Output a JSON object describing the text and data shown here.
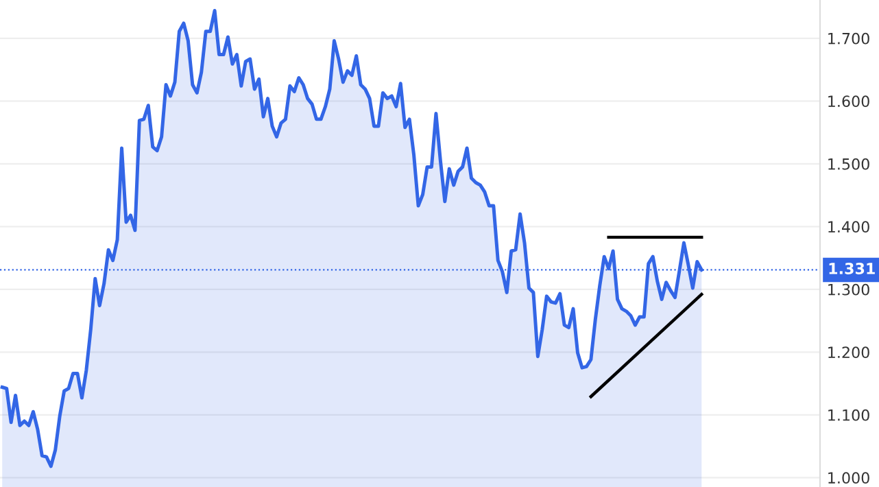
{
  "chart_data": {
    "type": "area",
    "categories": [
      null,
      null,
      null,
      null,
      null,
      null,
      null,
      null,
      null,
      null,
      null,
      null,
      null,
      null,
      null,
      null,
      null,
      null,
      null,
      null,
      null,
      null,
      null,
      null,
      null,
      null,
      null,
      null,
      null,
      null,
      null,
      null,
      null,
      null,
      null,
      null,
      null,
      null,
      null,
      null,
      null,
      null,
      null,
      null,
      null,
      null,
      null,
      null,
      null,
      null,
      null,
      null,
      null,
      null,
      null,
      null,
      null,
      null,
      null,
      null,
      null,
      null,
      null,
      null,
      null,
      null,
      null,
      null,
      null,
      null,
      null,
      null,
      null,
      null,
      null,
      null,
      null,
      null,
      null,
      null,
      null,
      null,
      null,
      null,
      null,
      null,
      null,
      null,
      null,
      null,
      null,
      null,
      null,
      null,
      null,
      null,
      null,
      null,
      null,
      null,
      null,
      null,
      null,
      null,
      null,
      null,
      null,
      null,
      null,
      null,
      null,
      null,
      null,
      null,
      null,
      null,
      null,
      null,
      null,
      null,
      null,
      null,
      null,
      null,
      null,
      null,
      null,
      null,
      null,
      null,
      null,
      null,
      null,
      null,
      null,
      null,
      null,
      null,
      null,
      null,
      null,
      null,
      null,
      null,
      null,
      null,
      null,
      null,
      null,
      null,
      null,
      null,
      null,
      null,
      null,
      null,
      null,
      null,
      null
    ],
    "series": [
      {
        "color": "#3366e6",
        "values": [
          1.144,
          1.142,
          1.088,
          1.131,
          1.083,
          1.09,
          1.083,
          1.105,
          1.077,
          1.035,
          1.033,
          1.018,
          1.044,
          1.098,
          1.138,
          1.142,
          1.166,
          1.166,
          1.127,
          1.171,
          1.236,
          1.317,
          1.274,
          1.309,
          1.363,
          1.346,
          1.379,
          1.525,
          1.407,
          1.418,
          1.394,
          1.569,
          1.571,
          1.593,
          1.527,
          1.521,
          1.543,
          1.626,
          1.608,
          1.63,
          1.711,
          1.724,
          1.696,
          1.626,
          1.613,
          1.646,
          1.711,
          1.711,
          1.744,
          1.674,
          1.674,
          1.702,
          1.659,
          1.674,
          1.624,
          1.663,
          1.667,
          1.619,
          1.635,
          1.575,
          1.604,
          1.56,
          1.543,
          1.565,
          1.571,
          1.624,
          1.615,
          1.637,
          1.626,
          1.604,
          1.595,
          1.571,
          1.571,
          1.591,
          1.619,
          1.696,
          1.667,
          1.63,
          1.648,
          1.641,
          1.672,
          1.626,
          1.619,
          1.604,
          1.56,
          1.56,
          1.613,
          1.604,
          1.608,
          1.591,
          1.628,
          1.558,
          1.571,
          1.514,
          1.433,
          1.451,
          1.495,
          1.495,
          1.58,
          1.505,
          1.44,
          1.492,
          1.466,
          1.488,
          1.495,
          1.525,
          1.477,
          1.47,
          1.466,
          1.455,
          1.433,
          1.433,
          1.346,
          1.328,
          1.295,
          1.361,
          1.363,
          1.42,
          1.374,
          1.302,
          1.295,
          1.193,
          1.236,
          1.289,
          1.28,
          1.278,
          1.293,
          1.243,
          1.239,
          1.269,
          1.199,
          1.175,
          1.177,
          1.188,
          1.252,
          1.306,
          1.352,
          1.333,
          1.361,
          1.284,
          1.269,
          1.265,
          1.258,
          1.243,
          1.256,
          1.256,
          1.341,
          1.352,
          1.313,
          1.284,
          1.311,
          1.298,
          1.287,
          1.33,
          1.374,
          1.339,
          1.302,
          1.344,
          1.331
        ]
      },
      {
        "type": "line",
        "color": "#000000",
        "values": [
          null,
          null,
          null,
          null,
          null,
          null,
          null,
          null,
          null,
          null,
          null,
          null,
          null,
          null,
          null,
          null,
          null,
          null,
          null,
          null,
          null,
          null,
          null,
          null,
          null,
          null,
          null,
          null,
          null,
          null,
          null,
          null,
          null,
          null,
          null,
          null,
          null,
          null,
          null,
          null,
          null,
          null,
          null,
          null,
          null,
          null,
          null,
          null,
          null,
          null,
          null,
          null,
          null,
          null,
          null,
          null,
          null,
          null,
          null,
          null,
          null,
          null,
          null,
          null,
          null,
          null,
          null,
          null,
          null,
          null,
          null,
          null,
          null,
          null,
          null,
          null,
          null,
          null,
          null,
          null,
          null,
          null,
          null,
          null,
          null,
          null,
          null,
          null,
          null,
          null,
          null,
          null,
          null,
          null,
          null,
          null,
          null,
          null,
          null,
          null,
          null,
          null,
          null,
          null,
          null,
          null,
          null,
          null,
          null,
          null,
          null,
          null,
          null,
          null,
          null,
          null,
          null,
          null,
          null,
          null,
          null,
          null,
          null,
          null,
          null,
          null,
          null,
          null,
          null,
          null,
          null,
          null,
          null,
          null,
          null,
          null,
          null,
          1.383,
          null,
          null,
          null,
          null,
          null,
          null,
          null,
          null,
          null,
          null,
          null,
          null,
          null,
          null,
          null,
          null,
          null,
          null,
          null,
          null,
          1.383
        ]
      },
      {
        "type": "line",
        "color": "#000000",
        "values": [
          null,
          null,
          null,
          null,
          null,
          null,
          null,
          null,
          null,
          null,
          null,
          null,
          null,
          null,
          null,
          null,
          null,
          null,
          null,
          null,
          null,
          null,
          null,
          null,
          null,
          null,
          null,
          null,
          null,
          null,
          null,
          null,
          null,
          null,
          null,
          null,
          null,
          null,
          null,
          null,
          null,
          null,
          null,
          null,
          null,
          null,
          null,
          null,
          null,
          null,
          null,
          null,
          null,
          null,
          null,
          null,
          null,
          null,
          null,
          null,
          null,
          null,
          null,
          null,
          null,
          null,
          null,
          null,
          null,
          null,
          null,
          null,
          null,
          null,
          null,
          null,
          null,
          null,
          null,
          null,
          null,
          null,
          null,
          null,
          null,
          null,
          null,
          null,
          null,
          null,
          null,
          null,
          null,
          null,
          null,
          null,
          null,
          null,
          null,
          null,
          null,
          null,
          null,
          null,
          null,
          null,
          null,
          null,
          null,
          null,
          null,
          null,
          null,
          null,
          null,
          null,
          null,
          null,
          null,
          null,
          null,
          null,
          null,
          null,
          null,
          null,
          null,
          null,
          null,
          null,
          null,
          null,
          null,
          1.129,
          null,
          null,
          null,
          null,
          null,
          null,
          null,
          null,
          null,
          null,
          null,
          null,
          null,
          null,
          null,
          null,
          null,
          null,
          null,
          null,
          null,
          null,
          null,
          null,
          1.292
        ]
      }
    ],
    "ylim": [
      0.985,
      1.761
    ],
    "yticks": [
      {
        "value": 1.0,
        "label": "1.000"
      },
      {
        "value": 1.1,
        "label": "1.100"
      },
      {
        "value": 1.2,
        "label": "1.200"
      },
      {
        "value": 1.3,
        "label": "1.300"
      },
      {
        "value": 1.4,
        "label": "1.400"
      },
      {
        "value": 1.5,
        "label": "1.500"
      },
      {
        "value": 1.6,
        "label": "1.600"
      },
      {
        "value": 1.7,
        "label": "1.700"
      }
    ],
    "ref_lines": [
      {
        "axis": "y",
        "value": 1.331,
        "label": "1.331",
        "color": "#3366e6",
        "line_style": "dotted"
      }
    ],
    "grid": "y",
    "tick_labels": "y",
    "legend": false
  }
}
